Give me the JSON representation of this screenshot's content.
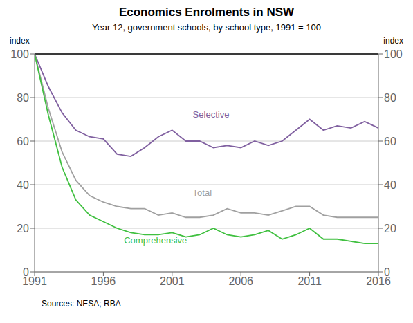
{
  "chart_data": {
    "type": "line",
    "title": "Economics Enrolments in NSW",
    "subtitle": "Year 12, government schools, by school type, 1991 = 100",
    "ylabel": "index",
    "y2label": "index",
    "source": "Sources:  NESA; RBA",
    "x": [
      1991,
      1992,
      1993,
      1994,
      1995,
      1996,
      1997,
      1998,
      1999,
      2000,
      2001,
      2002,
      2003,
      2004,
      2005,
      2006,
      2007,
      2008,
      2009,
      2010,
      2011,
      2012,
      2013,
      2014,
      2015,
      2016
    ],
    "xlim": [
      1991,
      2016
    ],
    "xticks": [
      1991,
      1996,
      2001,
      2006,
      2011,
      2016
    ],
    "ylim": [
      0,
      100
    ],
    "yticks": [
      0,
      20,
      40,
      60,
      80,
      100
    ],
    "y2lim": [
      0,
      100
    ],
    "y2ticks": [
      0,
      20,
      40,
      60,
      80,
      100
    ],
    "grid": true,
    "series": [
      {
        "name": "Selective",
        "color": "#8060A0",
        "values": [
          100,
          85,
          73,
          65,
          62,
          61,
          54,
          53,
          57,
          62,
          65,
          60,
          60,
          57,
          58,
          57,
          60,
          58,
          60,
          65,
          70,
          65,
          67,
          66,
          69,
          66
        ]
      },
      {
        "name": "Total",
        "color": "#A0A0A0",
        "values": [
          100,
          75,
          55,
          42,
          35,
          32,
          30,
          29,
          29,
          26,
          27,
          25,
          25,
          26,
          29,
          27,
          27,
          26,
          28,
          30,
          30,
          26,
          25,
          25,
          25,
          25
        ]
      },
      {
        "name": "Comprehensive",
        "color": "#40C040",
        "values": [
          100,
          72,
          48,
          33,
          26,
          23,
          20,
          18,
          17,
          17,
          18,
          16,
          17,
          20,
          17,
          16,
          17,
          19,
          15,
          17,
          20,
          15,
          15,
          14,
          13,
          13
        ]
      }
    ],
    "annotations": [
      {
        "text": "Selective",
        "x": 2002.5,
        "y": 70,
        "color": "#8060A0"
      },
      {
        "text": "Total",
        "x": 2002.5,
        "y": 34,
        "color": "#A0A0A0"
      },
      {
        "text": "Comprehensive",
        "x": 1997.5,
        "y": 12,
        "color": "#40C040"
      }
    ]
  }
}
